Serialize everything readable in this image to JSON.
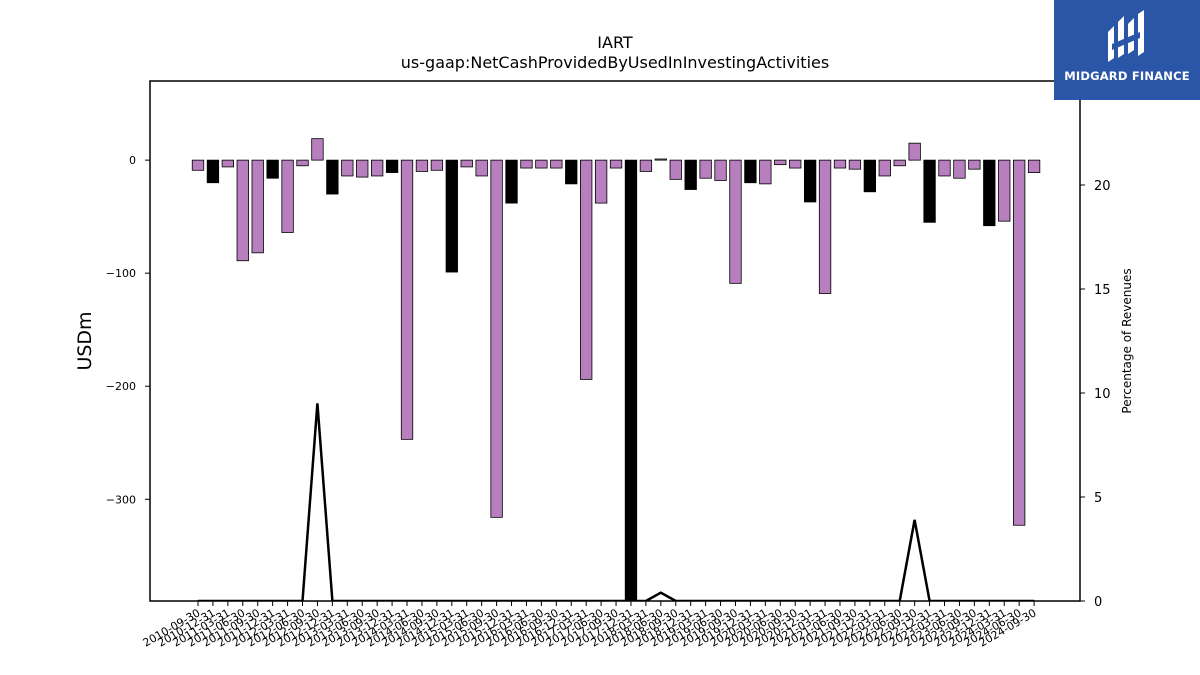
{
  "brand": {
    "name": "MIDGARD FINANCE",
    "bg_color": "#2b56a8",
    "icon": "midgard-logo-icon"
  },
  "chart_data": {
    "type": "bar",
    "title": "IART",
    "subtitle": "us-gaap:NetCashProvidedByUsedInInvestingActivities",
    "ylabel": "USDm",
    "y2label": "Percentage of Revenues",
    "ylim": [
      -390,
      70
    ],
    "y2lim": [
      0,
      25
    ],
    "yticks": [
      0,
      -100,
      -200,
      -300
    ],
    "y2ticks": [
      0,
      5,
      10,
      15,
      20
    ],
    "grid": false,
    "colors": {
      "positive_year": "#b87fbf",
      "year_end": "#000000",
      "line": "#000000"
    },
    "categories": [
      "2010-09-30",
      "2010-12-31",
      "2011-03-31",
      "2011-06-30",
      "2011-09-30",
      "2011-12-31",
      "2012-03-31",
      "2012-06-30",
      "2012-09-30",
      "2012-12-31",
      "2013-03-31",
      "2013-06-30",
      "2013-09-30",
      "2013-12-31",
      "2014-03-31",
      "2014-06-30",
      "2014-09-30",
      "2014-12-31",
      "2015-03-31",
      "2015-06-30",
      "2015-09-30",
      "2015-12-31",
      "2016-03-31",
      "2016-06-30",
      "2016-09-30",
      "2016-12-31",
      "2017-03-31",
      "2017-06-30",
      "2017-09-30",
      "2017-12-31",
      "2018-03-31",
      "2018-06-30",
      "2018-09-30",
      "2018-12-31",
      "2019-03-31",
      "2019-06-30",
      "2019-09-30",
      "2019-12-31",
      "2020-03-31",
      "2020-06-30",
      "2020-09-30",
      "2020-12-31",
      "2021-03-31",
      "2021-06-30",
      "2021-09-30",
      "2021-12-31",
      "2022-03-31",
      "2022-06-30",
      "2022-09-30",
      "2022-12-31",
      "2023-03-31",
      "2023-06-30",
      "2023-09-30",
      "2023-12-31",
      "2024-03-31",
      "2024-06-30",
      "2024-09-30"
    ],
    "values": [
      -9,
      -20,
      -6,
      -89,
      -82,
      -16,
      -64,
      -5,
      19,
      -30,
      -14,
      -15,
      -14,
      -11,
      -247,
      -10,
      -9,
      -99,
      -6,
      -14,
      -316,
      -38,
      -7,
      -7,
      -7,
      -21,
      -194,
      -38,
      -7,
      -430,
      -10,
      1,
      -17,
      -26,
      -16,
      -18,
      -109,
      -20,
      -21,
      -4,
      -7,
      -37,
      -118,
      -7,
      -8,
      -28,
      -14,
      -5,
      15,
      -55,
      -14,
      -16,
      -8,
      -58,
      -54,
      -323,
      -11
    ],
    "year_end_flags": [
      0,
      1,
      0,
      0,
      0,
      1,
      0,
      0,
      0,
      1,
      0,
      0,
      0,
      1,
      0,
      0,
      0,
      1,
      0,
      0,
      0,
      1,
      0,
      0,
      0,
      1,
      0,
      0,
      0,
      1,
      0,
      0,
      0,
      1,
      0,
      0,
      0,
      1,
      0,
      0,
      0,
      1,
      0,
      0,
      0,
      1,
      0,
      0,
      0,
      1,
      0,
      0,
      0,
      1,
      0,
      0,
      0
    ],
    "pct_of_revenue": [
      0,
      0,
      0,
      0,
      0,
      0,
      0,
      0,
      9.5,
      0,
      0,
      0,
      0,
      0,
      0,
      0,
      0,
      0,
      0,
      0,
      0,
      0,
      0,
      0,
      0,
      0,
      0,
      0,
      0,
      0,
      0,
      0.4,
      0,
      0,
      0,
      0,
      0,
      0,
      0,
      0,
      0,
      0,
      0,
      0,
      0,
      0,
      0,
      0,
      3.9,
      0,
      0,
      0,
      0,
      0,
      0,
      0,
      0
    ]
  }
}
